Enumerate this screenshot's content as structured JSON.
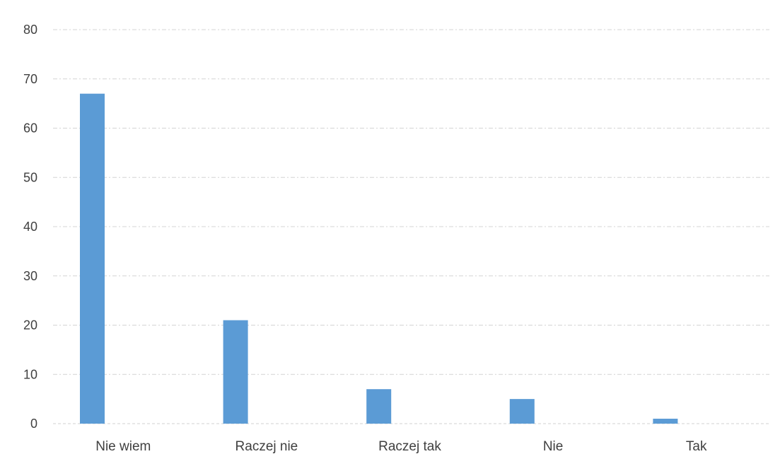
{
  "chart_data": {
    "type": "bar",
    "categories": [
      "Nie wiem",
      "Raczej nie",
      "Raczej tak",
      "Nie",
      "Tak"
    ],
    "values": [
      67,
      21,
      7,
      5,
      1
    ],
    "ylim": [
      0,
      80
    ],
    "yticks": [
      0,
      10,
      20,
      30,
      40,
      50,
      60,
      70,
      80
    ],
    "grid": true,
    "legend": "none",
    "bar_color": "#5b9bd5"
  }
}
